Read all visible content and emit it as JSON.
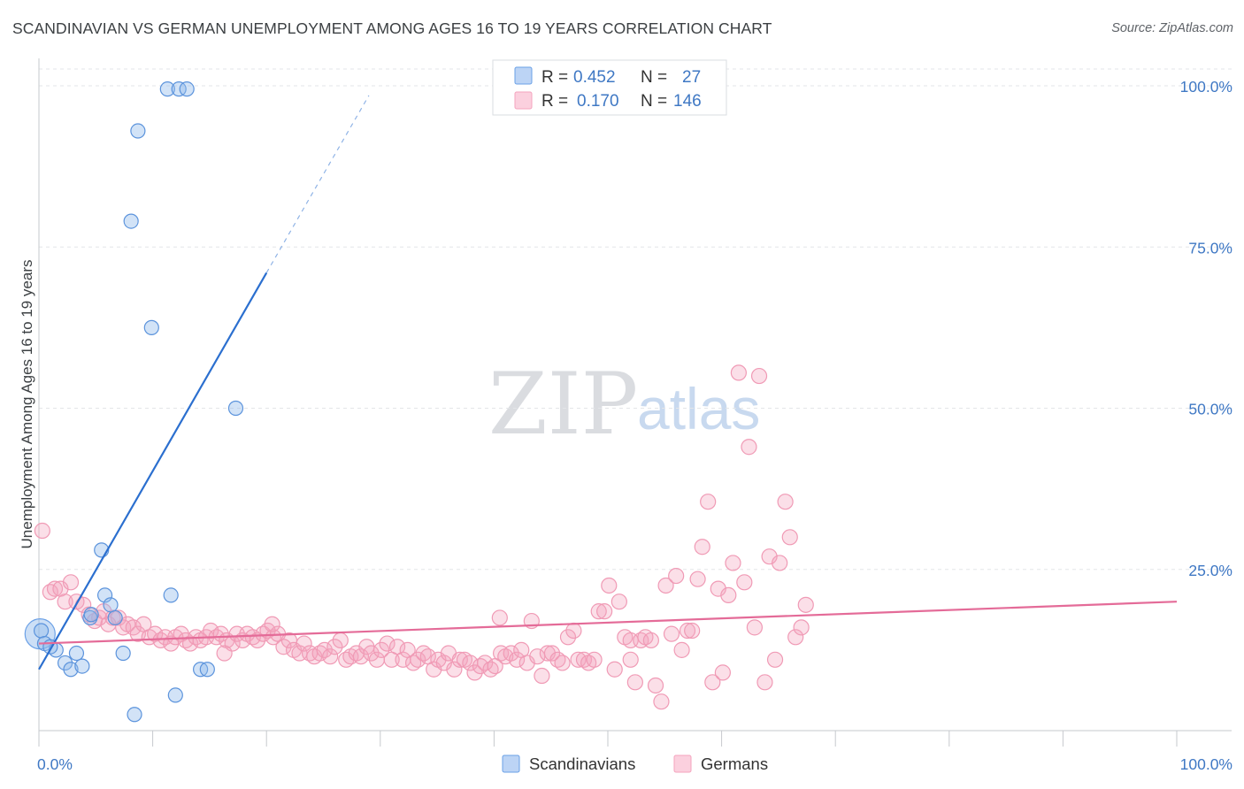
{
  "title": "SCANDINAVIAN VS GERMAN UNEMPLOYMENT AMONG AGES 16 TO 19 YEARS CORRELATION CHART",
  "source": "Source: ZipAtlas.com",
  "watermark": {
    "zip": "ZIP",
    "atlas": "atlas"
  },
  "colors": {
    "scandinavians": "#6aa0e6",
    "germans": "#f4a3bd",
    "scandinavians_line": "#2b6fcf",
    "germans_line": "#e46b98",
    "tick_text": "#3f78c4"
  },
  "legend": {
    "rows": [
      {
        "r_label": "R =",
        "r_value": "0.452",
        "n_label": "N =",
        "n_value": "27"
      },
      {
        "r_label": "R =",
        "r_value": "0.170",
        "n_label": "N =",
        "n_value": "146"
      }
    ]
  },
  "bottom_legend": [
    "Scandinavians",
    "Germans"
  ],
  "chart_data": {
    "type": "scatter",
    "xlabel": "",
    "ylabel": "Unemployment Among Ages 16 to 19 years",
    "xlim": [
      0,
      100
    ],
    "ylim": [
      0,
      100
    ],
    "x_tick_labels": [
      "0.0%",
      "100.0%"
    ],
    "y_tick_labels": [
      "25.0%",
      "50.0%",
      "75.0%",
      "100.0%"
    ],
    "y_ticks": [
      25,
      50,
      75,
      100
    ],
    "grid": true,
    "legend_position": "top-center",
    "series": [
      {
        "name": "Scandinavians",
        "r": 0.452,
        "n": 27,
        "trend": {
          "x0": 0,
          "y0": 9.5,
          "x1": 20,
          "y1": 71,
          "dash_to_x": 29,
          "dash_to_y": 98.5
        },
        "points": [
          [
            0.2,
            15.5
          ],
          [
            0.5,
            13.5
          ],
          [
            1.5,
            12.5
          ],
          [
            2.3,
            10.5
          ],
          [
            2.8,
            9.5
          ],
          [
            3.3,
            12
          ],
          [
            3.8,
            10
          ],
          [
            4.5,
            17.5
          ],
          [
            4.6,
            18
          ],
          [
            5.5,
            28
          ],
          [
            5.8,
            21
          ],
          [
            6.3,
            19.5
          ],
          [
            6.7,
            17.5
          ],
          [
            7.4,
            12
          ],
          [
            8.1,
            79
          ],
          [
            8.4,
            2.5
          ],
          [
            8.7,
            93
          ],
          [
            9.9,
            62.5
          ],
          [
            11.3,
            99.5
          ],
          [
            11.6,
            21
          ],
          [
            12.0,
            5.5
          ],
          [
            12.3,
            99.5
          ],
          [
            13.0,
            99.5
          ],
          [
            14.2,
            9.5
          ],
          [
            14.8,
            9.5
          ],
          [
            17.3,
            50
          ],
          [
            1.0,
            13.0
          ]
        ]
      },
      {
        "name": "Germans",
        "r": 0.17,
        "n": 146,
        "trend": {
          "x0": 0,
          "y0": 13.5,
          "x1": 100,
          "y1": 20
        },
        "points": [
          [
            0.3,
            31
          ],
          [
            1.0,
            21.5
          ],
          [
            1.4,
            22
          ],
          [
            1.9,
            22
          ],
          [
            2.3,
            20
          ],
          [
            2.8,
            23
          ],
          [
            3.3,
            20
          ],
          [
            3.9,
            19.5
          ],
          [
            4.4,
            18
          ],
          [
            4.9,
            17
          ],
          [
            5.3,
            17.5
          ],
          [
            5.7,
            18.5
          ],
          [
            6.1,
            16.5
          ],
          [
            6.5,
            17.5
          ],
          [
            7.0,
            17.5
          ],
          [
            7.4,
            16
          ],
          [
            7.8,
            16.5
          ],
          [
            8.3,
            16
          ],
          [
            8.7,
            15
          ],
          [
            9.2,
            16.5
          ],
          [
            9.7,
            14.5
          ],
          [
            10.2,
            15
          ],
          [
            10.7,
            14
          ],
          [
            11.1,
            14.5
          ],
          [
            11.6,
            13.5
          ],
          [
            12.0,
            14.5
          ],
          [
            12.5,
            15
          ],
          [
            12.9,
            14
          ],
          [
            13.3,
            13.5
          ],
          [
            13.8,
            14.5
          ],
          [
            14.2,
            14
          ],
          [
            14.7,
            14.5
          ],
          [
            15.1,
            15.5
          ],
          [
            15.6,
            14.5
          ],
          [
            16.0,
            15
          ],
          [
            16.5,
            14
          ],
          [
            17.0,
            13.5
          ],
          [
            17.4,
            15
          ],
          [
            17.9,
            14
          ],
          [
            18.3,
            15
          ],
          [
            18.8,
            14.5
          ],
          [
            19.2,
            14
          ],
          [
            19.7,
            15
          ],
          [
            20.1,
            15.5
          ],
          [
            20.6,
            14.5
          ],
          [
            21.0,
            15
          ],
          [
            21.5,
            13
          ],
          [
            22.0,
            14
          ],
          [
            22.4,
            12.5
          ],
          [
            22.9,
            12
          ],
          [
            23.3,
            13.5
          ],
          [
            23.8,
            12
          ],
          [
            24.2,
            11.5
          ],
          [
            24.7,
            12
          ],
          [
            25.1,
            12.5
          ],
          [
            25.6,
            11.5
          ],
          [
            26.0,
            13
          ],
          [
            26.5,
            14
          ],
          [
            27.0,
            11
          ],
          [
            27.4,
            11.5
          ],
          [
            27.9,
            12
          ],
          [
            28.3,
            11.5
          ],
          [
            28.8,
            13
          ],
          [
            29.2,
            12
          ],
          [
            29.7,
            11
          ],
          [
            30.1,
            12.5
          ],
          [
            30.6,
            13.5
          ],
          [
            31.0,
            11
          ],
          [
            31.5,
            13
          ],
          [
            32.0,
            11
          ],
          [
            32.4,
            12.5
          ],
          [
            32.9,
            10.5
          ],
          [
            33.3,
            11
          ],
          [
            33.8,
            12
          ],
          [
            34.2,
            11.5
          ],
          [
            34.7,
            9.5
          ],
          [
            35.1,
            11
          ],
          [
            35.6,
            10.5
          ],
          [
            36.0,
            12
          ],
          [
            36.5,
            9.5
          ],
          [
            37.0,
            11
          ],
          [
            37.4,
            11
          ],
          [
            37.9,
            10.5
          ],
          [
            38.3,
            9
          ],
          [
            38.8,
            10
          ],
          [
            39.2,
            10.5
          ],
          [
            39.7,
            9.5
          ],
          [
            40.1,
            10
          ],
          [
            40.6,
            12
          ],
          [
            41.0,
            11.5
          ],
          [
            41.5,
            12
          ],
          [
            42.0,
            11
          ],
          [
            42.4,
            12.5
          ],
          [
            42.9,
            10.5
          ],
          [
            43.3,
            17
          ],
          [
            43.8,
            11.5
          ],
          [
            44.2,
            8.5
          ],
          [
            44.7,
            12
          ],
          [
            45.1,
            12
          ],
          [
            45.6,
            11
          ],
          [
            46.0,
            10.5
          ],
          [
            46.5,
            14.5
          ],
          [
            47.0,
            15.5
          ],
          [
            47.4,
            11
          ],
          [
            47.9,
            11
          ],
          [
            48.3,
            10.5
          ],
          [
            48.8,
            11
          ],
          [
            49.2,
            18.5
          ],
          [
            49.7,
            18.5
          ],
          [
            50.1,
            22.5
          ],
          [
            50.6,
            9.5
          ],
          [
            51.0,
            20
          ],
          [
            51.5,
            14.5
          ],
          [
            52.0,
            14
          ],
          [
            52.4,
            7.5
          ],
          [
            52.9,
            14
          ],
          [
            53.3,
            14.5
          ],
          [
            53.8,
            14
          ],
          [
            54.2,
            7
          ],
          [
            54.7,
            4.5
          ],
          [
            55.1,
            22.5
          ],
          [
            55.6,
            15
          ],
          [
            56.0,
            24
          ],
          [
            56.5,
            12.5
          ],
          [
            57.0,
            15.5
          ],
          [
            57.4,
            15.5
          ],
          [
            57.9,
            23.5
          ],
          [
            58.3,
            28.5
          ],
          [
            58.8,
            35.5
          ],
          [
            59.2,
            7.5
          ],
          [
            59.7,
            22
          ],
          [
            60.1,
            9
          ],
          [
            60.6,
            21
          ],
          [
            61.0,
            26
          ],
          [
            61.5,
            55.5
          ],
          [
            62.0,
            23
          ],
          [
            62.4,
            44
          ],
          [
            62.9,
            16
          ],
          [
            63.3,
            55
          ],
          [
            63.8,
            7.5
          ],
          [
            64.2,
            27
          ],
          [
            64.7,
            11
          ],
          [
            65.1,
            26
          ],
          [
            65.6,
            35.5
          ],
          [
            66.0,
            30
          ],
          [
            66.5,
            14.5
          ],
          [
            67.0,
            16
          ],
          [
            67.4,
            19.5
          ],
          [
            52.0,
            11
          ],
          [
            20.5,
            16.5
          ],
          [
            16.3,
            12
          ],
          [
            40.5,
            17.5
          ]
        ]
      }
    ]
  }
}
